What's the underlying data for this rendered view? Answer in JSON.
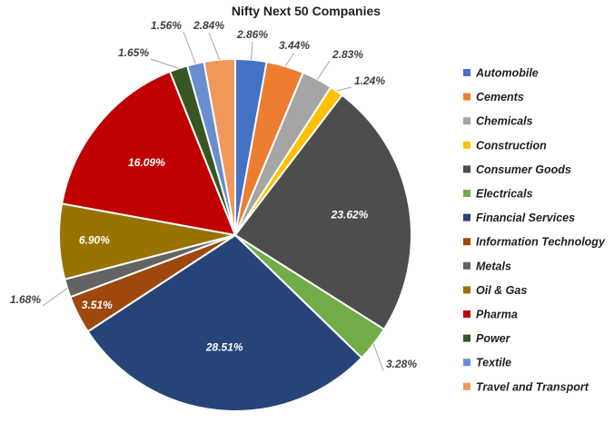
{
  "chart_data": {
    "type": "pie",
    "title": "Nifty Next 50 Companies",
    "legend_position": "right",
    "slices": [
      {
        "name": "Automobile",
        "value": 2.86,
        "label": "2.86%",
        "color": "#4472C4",
        "label_inside": false,
        "label_color": "#404040"
      },
      {
        "name": "Cements",
        "value": 3.44,
        "label": "3.44%",
        "color": "#ED7D31",
        "label_inside": false,
        "label_color": "#404040"
      },
      {
        "name": "Chemicals",
        "value": 2.83,
        "label": "2.83%",
        "color": "#A5A5A5",
        "label_inside": false,
        "label_color": "#404040"
      },
      {
        "name": "Construction",
        "value": 1.24,
        "label": "1.24%",
        "color": "#FFC000",
        "label_inside": false,
        "label_color": "#404040"
      },
      {
        "name": "Consumer Goods",
        "value": 23.62,
        "label": "23.62%",
        "color": "#4D4D4D",
        "label_inside": true,
        "label_color": "#ffffff"
      },
      {
        "name": "Electricals",
        "value": 3.28,
        "label": "3.28%",
        "color": "#70AD47",
        "label_inside": false,
        "label_color": "#404040"
      },
      {
        "name": "Financial Services",
        "value": 28.51,
        "label": "28.51%",
        "color": "#264478",
        "label_inside": true,
        "label_color": "#ffffff"
      },
      {
        "name": "Information Technology",
        "value": 3.51,
        "label": "3.51%",
        "color": "#9E480E",
        "label_inside": true,
        "label_color": "#ffffff"
      },
      {
        "name": "Metals",
        "value": 1.68,
        "label": "1.68%",
        "color": "#636363",
        "label_inside": false,
        "label_color": "#404040"
      },
      {
        "name": "Oil & Gas",
        "value": 6.9,
        "label": "6.90%",
        "color": "#997300",
        "label_inside": true,
        "label_color": "#ffffff"
      },
      {
        "name": "Pharma",
        "value": 16.09,
        "label": "16.09%",
        "color": "#C00000",
        "label_inside": true,
        "label_color": "#ffffff"
      },
      {
        "name": "Power",
        "value": 1.65,
        "label": "1.65%",
        "color": "#375623",
        "label_inside": false,
        "label_color": "#404040"
      },
      {
        "name": "Textile",
        "value": 1.56,
        "label": "1.56%",
        "color": "#698ED0",
        "label_inside": false,
        "label_color": "#404040"
      },
      {
        "name": "Travel and Transport",
        "value": 2.84,
        "label": "2.84%",
        "color": "#F1975A",
        "label_inside": false,
        "label_color": "#404040"
      }
    ]
  }
}
